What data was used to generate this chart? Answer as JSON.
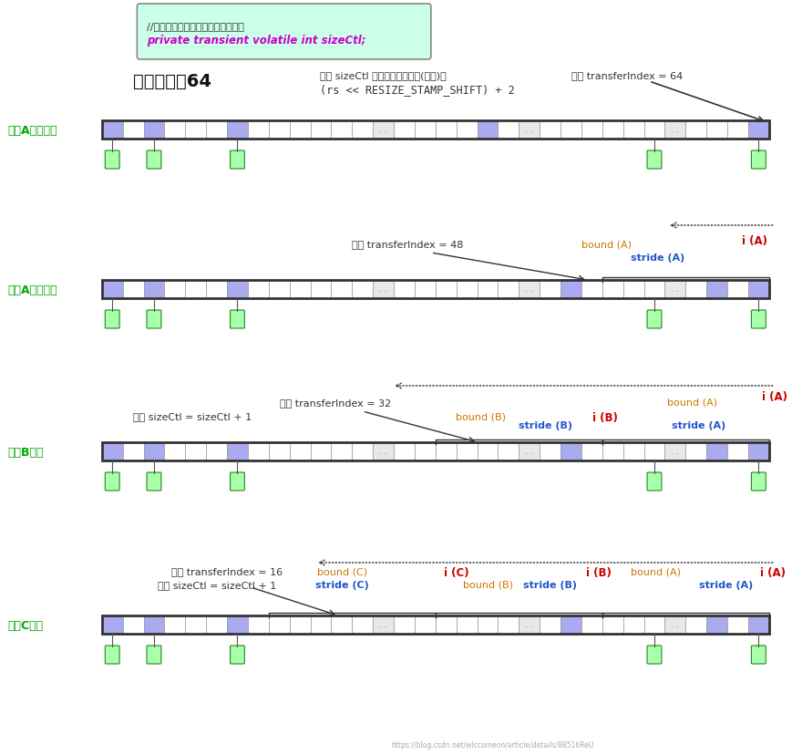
{
  "bg_color": "#ffffff",
  "code_box_text1": "//用于记录当前并发扩容的线程数量",
  "code_box_text2": "private transient volatile int sizeCtl;",
  "code_box_color": "#ccffe8",
  "code_box_border": "#888888",
  "code_text1_color": "#333333",
  "code_text2_color": "#cc00cc",
  "title_array": "数组长度：64",
  "title_sizeCtl_l1": "设置 sizeCtl 为某个特定基数値(负数)：",
  "title_sizeCtl_l2": "(rs << RESIZE_STAMP_SHIFT) + 2",
  "title_transfer64": "设置 transferIndex = 64",
  "row0_label": "线程A开始扩容",
  "row1_label": "线程A分配任务",
  "row2_label": "线程B加入",
  "row3_label": "线程C加入",
  "label_color": "#00aa00",
  "orange": "#cc7700",
  "blue": "#2255cc",
  "red": "#cc0000",
  "dark": "#333333",
  "purple": "#aaaaee",
  "white_cell": "#ffffff",
  "gray_cell": "#e8e8e8",
  "green_fill": "#aaffaa",
  "green_border": "#228822",
  "watermark": "https://blog.csdn.net/wlccomeon/article/details/88516ReU"
}
